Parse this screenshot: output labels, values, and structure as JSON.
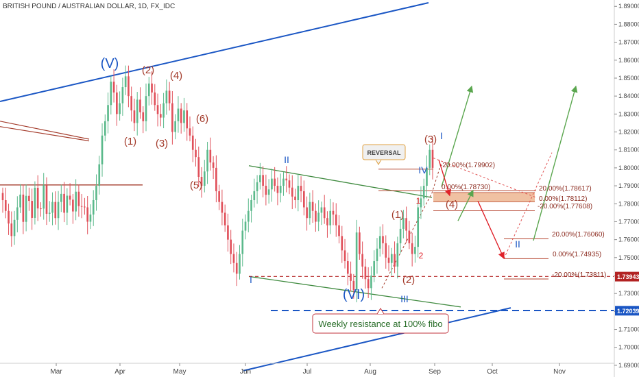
{
  "header": {
    "title": "BRITISH POUND / AUSTRALIAN DOLLAR, 1D, FX_IDC"
  },
  "colors": {
    "up": "#5bb98b",
    "down": "#e0505a",
    "wave": "#a33a2a",
    "blue": "#1a56c4",
    "green": "#3f8a3f",
    "greenArrow": "#5aa64e",
    "redArrow": "#e0222a",
    "zone": "#e8a070",
    "axis": "#444444"
  },
  "chart_data": {
    "type": "candlestick",
    "ylim": [
      1.685,
      1.892
    ],
    "y_ticks": [
      1.69,
      1.7,
      1.71,
      1.72,
      1.73,
      1.74,
      1.75,
      1.76,
      1.77,
      1.78,
      1.79,
      1.8,
      1.81,
      1.82,
      1.83,
      1.84,
      1.85,
      1.86,
      1.87,
      1.88,
      1.89
    ],
    "y_tick_labels": [
      "1.69000",
      "1.70000",
      "1.71000",
      "1.72000",
      "1.73000",
      "1.74000",
      "1.75000",
      "1.76000",
      "1.77000",
      "1.78000",
      "1.79000",
      "1.80000",
      "1.81000",
      "1.82000",
      "1.83000",
      "1.84000",
      "1.85000",
      "1.86000",
      "1.87000",
      "1.88000",
      "1.89000"
    ],
    "x_labels": [
      "Mar",
      "Apr",
      "May",
      "Jun",
      "Jul",
      "Aug",
      "Sep",
      "Oct",
      "Nov"
    ],
    "price_badges": [
      "1.73943",
      "1.72039"
    ],
    "key_prices": [
      {
        "price": 1.7813,
        "pattern": "1.79,1.7813,1.775,1.772,1.781,1.788,1.779,1.785,1.792,1.789,1.785,1.79,1.788,1.78,1.782,1.79,1.775,1.768,1.772,1.785,1.781,1.775,1.76,1.768,1.782,1.77,1.775,1.792"
      },
      {
        "price": 1.842,
        "pattern": "1.835,1.848,1.842,1.83,1.836,1.845,1.851,1.84,1.832,1.825,1.838,1.831,1.826,1.84,1.847,1.842,1.835,1.83,1.828,1.836,1.843,1.836,1.82,1.826,1.833,1.825,1.832,1.822,1.818,1.81,1.806,1.795,1.79,1.798,1.81,1.803"
      },
      {
        "price": 1.787,
        "pattern": "1.8,1.787,1.781,1.775,1.768,1.76,1.752,1.747,1.741,1.752,1.765,1.77,1.776,1.782,1.787,1.792,1.796,1.79,1.785,1.788,1.794,1.79,1.786,1.79,1.794,1.793,1.789,1.784,1.782,1.79,1.787,1.778,1.772,1.781,1.776,1.77,1.775,1.778,1.772,1.768,1.776,1.774"
      },
      {
        "price": 1.765,
        "pattern": "1.764,1.752,1.745,1.738,1.733,1.74,1.748,1.755,1.762,1.758,1.75,1.747,1.752,1.745,1.758,1.766,1.772,1.765,1.758,1.752,1.756,1.778,1.783,1.79,1.8"
      }
    ],
    "wave_labels": [
      "(V)",
      "(VI)",
      "(1)",
      "(2)",
      "(3)",
      "(4)",
      "(5)",
      "(6)",
      "(1)",
      "(2)",
      "(3)",
      "(4)",
      "I",
      "II",
      "III",
      "I",
      "II",
      "IV",
      "1",
      "2"
    ],
    "fib_labels": [
      "-20.00%(1.79902)",
      "0.00%(1.78730)",
      "20.00%(1.78617)",
      "0.00%(1.78112)",
      "-20.00%(1.77608)",
      "20.00%(1.76060)",
      "0.00%(1.74935)",
      "-20.00%(1.73811)"
    ],
    "annotations": [
      "REVERSAL",
      "Weekly resistance at 100% fibo"
    ]
  }
}
